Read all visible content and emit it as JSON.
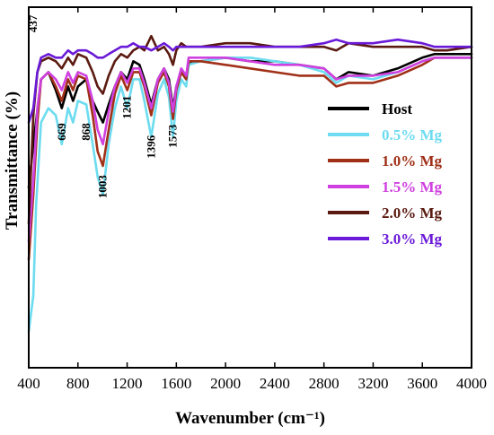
{
  "chart_data": {
    "type": "line",
    "xlabel": "Wavenumber (cm⁻¹)",
    "ylabel": "Transmittance  (%)",
    "xlim": [
      400,
      4000
    ],
    "ylim": [
      0,
      100
    ],
    "x_ticks": [
      400,
      800,
      1200,
      1600,
      2000,
      2400,
      2800,
      3200,
      3600,
      4000
    ],
    "y_ticks_shown": false,
    "grid": false,
    "legend_position": "right",
    "annotations": [
      {
        "text": "437",
        "x": 437,
        "y": 93
      },
      {
        "text": "669",
        "x": 669,
        "y": 63
      },
      {
        "text": "868",
        "x": 868,
        "y": 63
      },
      {
        "text": "1003",
        "x": 1003,
        "y": 47
      },
      {
        "text": "1201",
        "x": 1201,
        "y": 69
      },
      {
        "text": "1396",
        "x": 1396,
        "y": 58
      },
      {
        "text": "1573",
        "x": 1573,
        "y": 61
      }
    ],
    "series": [
      {
        "name": "Host",
        "color": "#000000",
        "x": [
          400,
          437,
          500,
          560,
          620,
          669,
          720,
          760,
          800,
          868,
          920,
          960,
          1003,
          1050,
          1100,
          1150,
          1201,
          1250,
          1300,
          1340,
          1396,
          1450,
          1500,
          1540,
          1573,
          1600,
          1640,
          1680,
          1700,
          1750,
          1800,
          2000,
          2200,
          2400,
          2600,
          2800,
          2900,
          3000,
          3200,
          3400,
          3600,
          3700,
          3800,
          4000
        ],
        "y": [
          50,
          62,
          80,
          82,
          77,
          72,
          78,
          74,
          78,
          80,
          74,
          71,
          68,
          73,
          78,
          82,
          80,
          85,
          84,
          80,
          73,
          80,
          83,
          80,
          72,
          78,
          82,
          80,
          84,
          85,
          85,
          86,
          85,
          85,
          84,
          83,
          80,
          82,
          81,
          83,
          86,
          87,
          87,
          87
        ]
      },
      {
        "name": "0.5% Mg",
        "color": "#6ddcf0",
        "x": [
          400,
          437,
          460,
          500,
          560,
          620,
          669,
          720,
          760,
          800,
          868,
          920,
          960,
          1003,
          1050,
          1100,
          1150,
          1201,
          1250,
          1300,
          1340,
          1396,
          1450,
          1500,
          1540,
          1573,
          1600,
          1640,
          1680,
          1700,
          1800,
          2000,
          2200,
          2400,
          2600,
          2800,
          2900,
          3000,
          3200,
          3400,
          3600,
          3700,
          3800,
          4000
        ],
        "y": [
          10,
          20,
          45,
          68,
          72,
          70,
          62,
          72,
          68,
          74,
          73,
          62,
          53,
          48,
          62,
          72,
          78,
          72,
          80,
          80,
          74,
          64,
          76,
          80,
          75,
          64,
          74,
          80,
          78,
          84,
          85,
          86,
          86,
          85,
          84,
          82,
          79,
          81,
          80,
          82,
          85,
          86,
          86,
          86
        ]
      },
      {
        "name": "1.0% Mg",
        "color": "#a03018",
        "x": [
          400,
          437,
          470,
          500,
          560,
          620,
          669,
          720,
          760,
          800,
          868,
          920,
          960,
          1003,
          1050,
          1100,
          1150,
          1201,
          1250,
          1300,
          1340,
          1396,
          1450,
          1500,
          1540,
          1573,
          1600,
          1640,
          1680,
          1700,
          1800,
          2000,
          2200,
          2400,
          2600,
          2800,
          2900,
          3000,
          3200,
          3400,
          3600,
          3700,
          3800,
          4000
        ],
        "y": [
          30,
          48,
          68,
          80,
          82,
          78,
          74,
          80,
          77,
          81,
          80,
          70,
          60,
          56,
          66,
          76,
          81,
          77,
          82,
          82,
          78,
          70,
          79,
          82,
          78,
          69,
          77,
          82,
          80,
          85,
          85,
          84,
          83,
          82,
          81,
          81,
          78,
          79,
          79,
          81,
          84,
          86,
          86,
          86
        ]
      },
      {
        "name": "1.5% Mg",
        "color": "#d040e0",
        "x": [
          400,
          437,
          470,
          500,
          560,
          620,
          669,
          720,
          760,
          800,
          868,
          920,
          960,
          1003,
          1050,
          1100,
          1150,
          1201,
          1250,
          1300,
          1340,
          1396,
          1450,
          1500,
          1540,
          1573,
          1600,
          1640,
          1680,
          1700,
          1800,
          2000,
          2200,
          2400,
          2600,
          2800,
          2900,
          3000,
          3200,
          3400,
          3600,
          3700,
          3800,
          4000
        ],
        "y": [
          35,
          52,
          72,
          80,
          82,
          80,
          77,
          82,
          79,
          82,
          81,
          74,
          66,
          62,
          71,
          78,
          82,
          79,
          83,
          83,
          79,
          72,
          80,
          83,
          79,
          71,
          78,
          83,
          81,
          86,
          86,
          86,
          85,
          84,
          84,
          83,
          80,
          81,
          81,
          82,
          85,
          86,
          86,
          86
        ]
      },
      {
        "name": "2.0% Mg",
        "color": "#5a1a10",
        "x": [
          400,
          437,
          470,
          500,
          560,
          620,
          669,
          720,
          760,
          800,
          868,
          920,
          960,
          1003,
          1050,
          1100,
          1150,
          1201,
          1250,
          1300,
          1340,
          1396,
          1450,
          1500,
          1540,
          1573,
          1600,
          1640,
          1680,
          1700,
          1800,
          2000,
          2200,
          2400,
          2600,
          2800,
          2900,
          3000,
          3200,
          3400,
          3600,
          3700,
          3800,
          4000
        ],
        "y": [
          40,
          70,
          82,
          85,
          86,
          85,
          83,
          86,
          84,
          87,
          86,
          82,
          78,
          76,
          81,
          85,
          87,
          86,
          88,
          89,
          88,
          92,
          88,
          89,
          87,
          84,
          88,
          90,
          89,
          89,
          89,
          90,
          90,
          89,
          89,
          89,
          88,
          90,
          89,
          89,
          89,
          88,
          88,
          89
        ]
      },
      {
        "name": "3.0% Mg",
        "color": "#6a1ad8",
        "x": [
          400,
          437,
          470,
          500,
          560,
          620,
          669,
          720,
          760,
          800,
          868,
          920,
          960,
          1003,
          1050,
          1100,
          1150,
          1201,
          1250,
          1300,
          1340,
          1396,
          1450,
          1500,
          1540,
          1573,
          1600,
          1640,
          1680,
          1700,
          1800,
          2000,
          2200,
          2400,
          2600,
          2800,
          2900,
          3000,
          3200,
          3400,
          3600,
          3700,
          3800,
          4000
        ],
        "y": [
          68,
          72,
          82,
          86,
          87,
          86,
          86,
          88,
          87,
          88,
          88,
          87,
          86,
          86,
          87,
          88,
          89,
          89,
          90,
          89,
          89,
          88,
          89,
          90,
          89,
          88,
          89,
          89,
          89,
          89,
          89,
          89,
          89,
          89,
          89,
          90,
          91,
          90,
          90,
          91,
          90,
          89,
          89,
          89
        ]
      }
    ]
  }
}
